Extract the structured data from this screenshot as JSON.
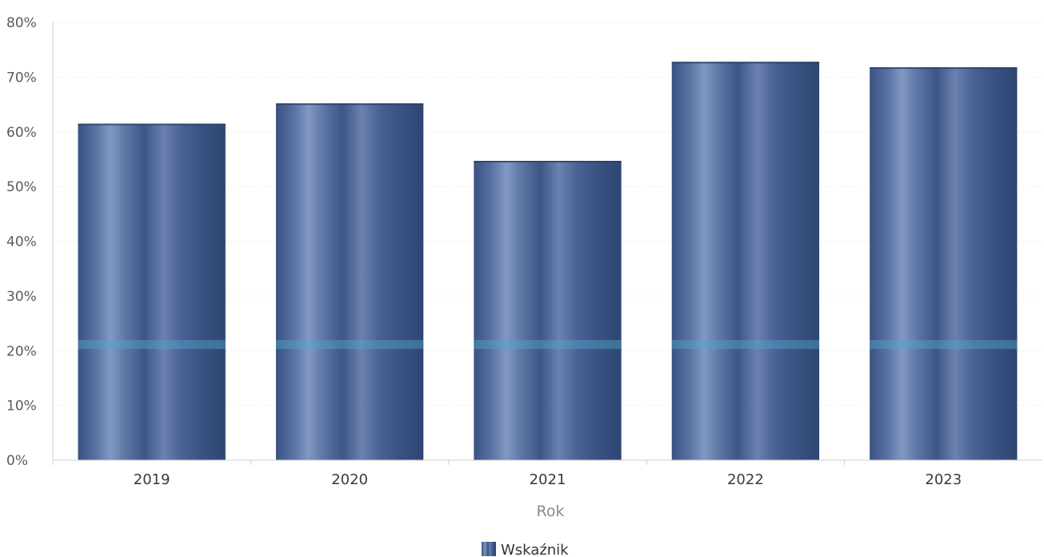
{
  "chart_data": {
    "type": "bar",
    "categories": [
      "2019",
      "2020",
      "2021",
      "2022",
      "2023"
    ],
    "series": [
      {
        "name": "Wskaźnik",
        "values": [
          61.5,
          65.2,
          54.7,
          72.8,
          71.8
        ]
      }
    ],
    "xlabel": "Rok",
    "ylabel": "",
    "ylim": [
      0,
      80
    ],
    "yticks": [
      "0%",
      "10%",
      "20%",
      "30%",
      "40%",
      "50%",
      "60%",
      "70%",
      "80%"
    ],
    "ytick_values": [
      0,
      10,
      20,
      30,
      40,
      50,
      60,
      70,
      80
    ],
    "grid": true,
    "legend": "bottom-center",
    "colors": {
      "bar_dark": "#324a78",
      "bar_mid": "#4c6597",
      "bar_light": "#7e95bf",
      "stripe": "#4fa7c9"
    }
  }
}
